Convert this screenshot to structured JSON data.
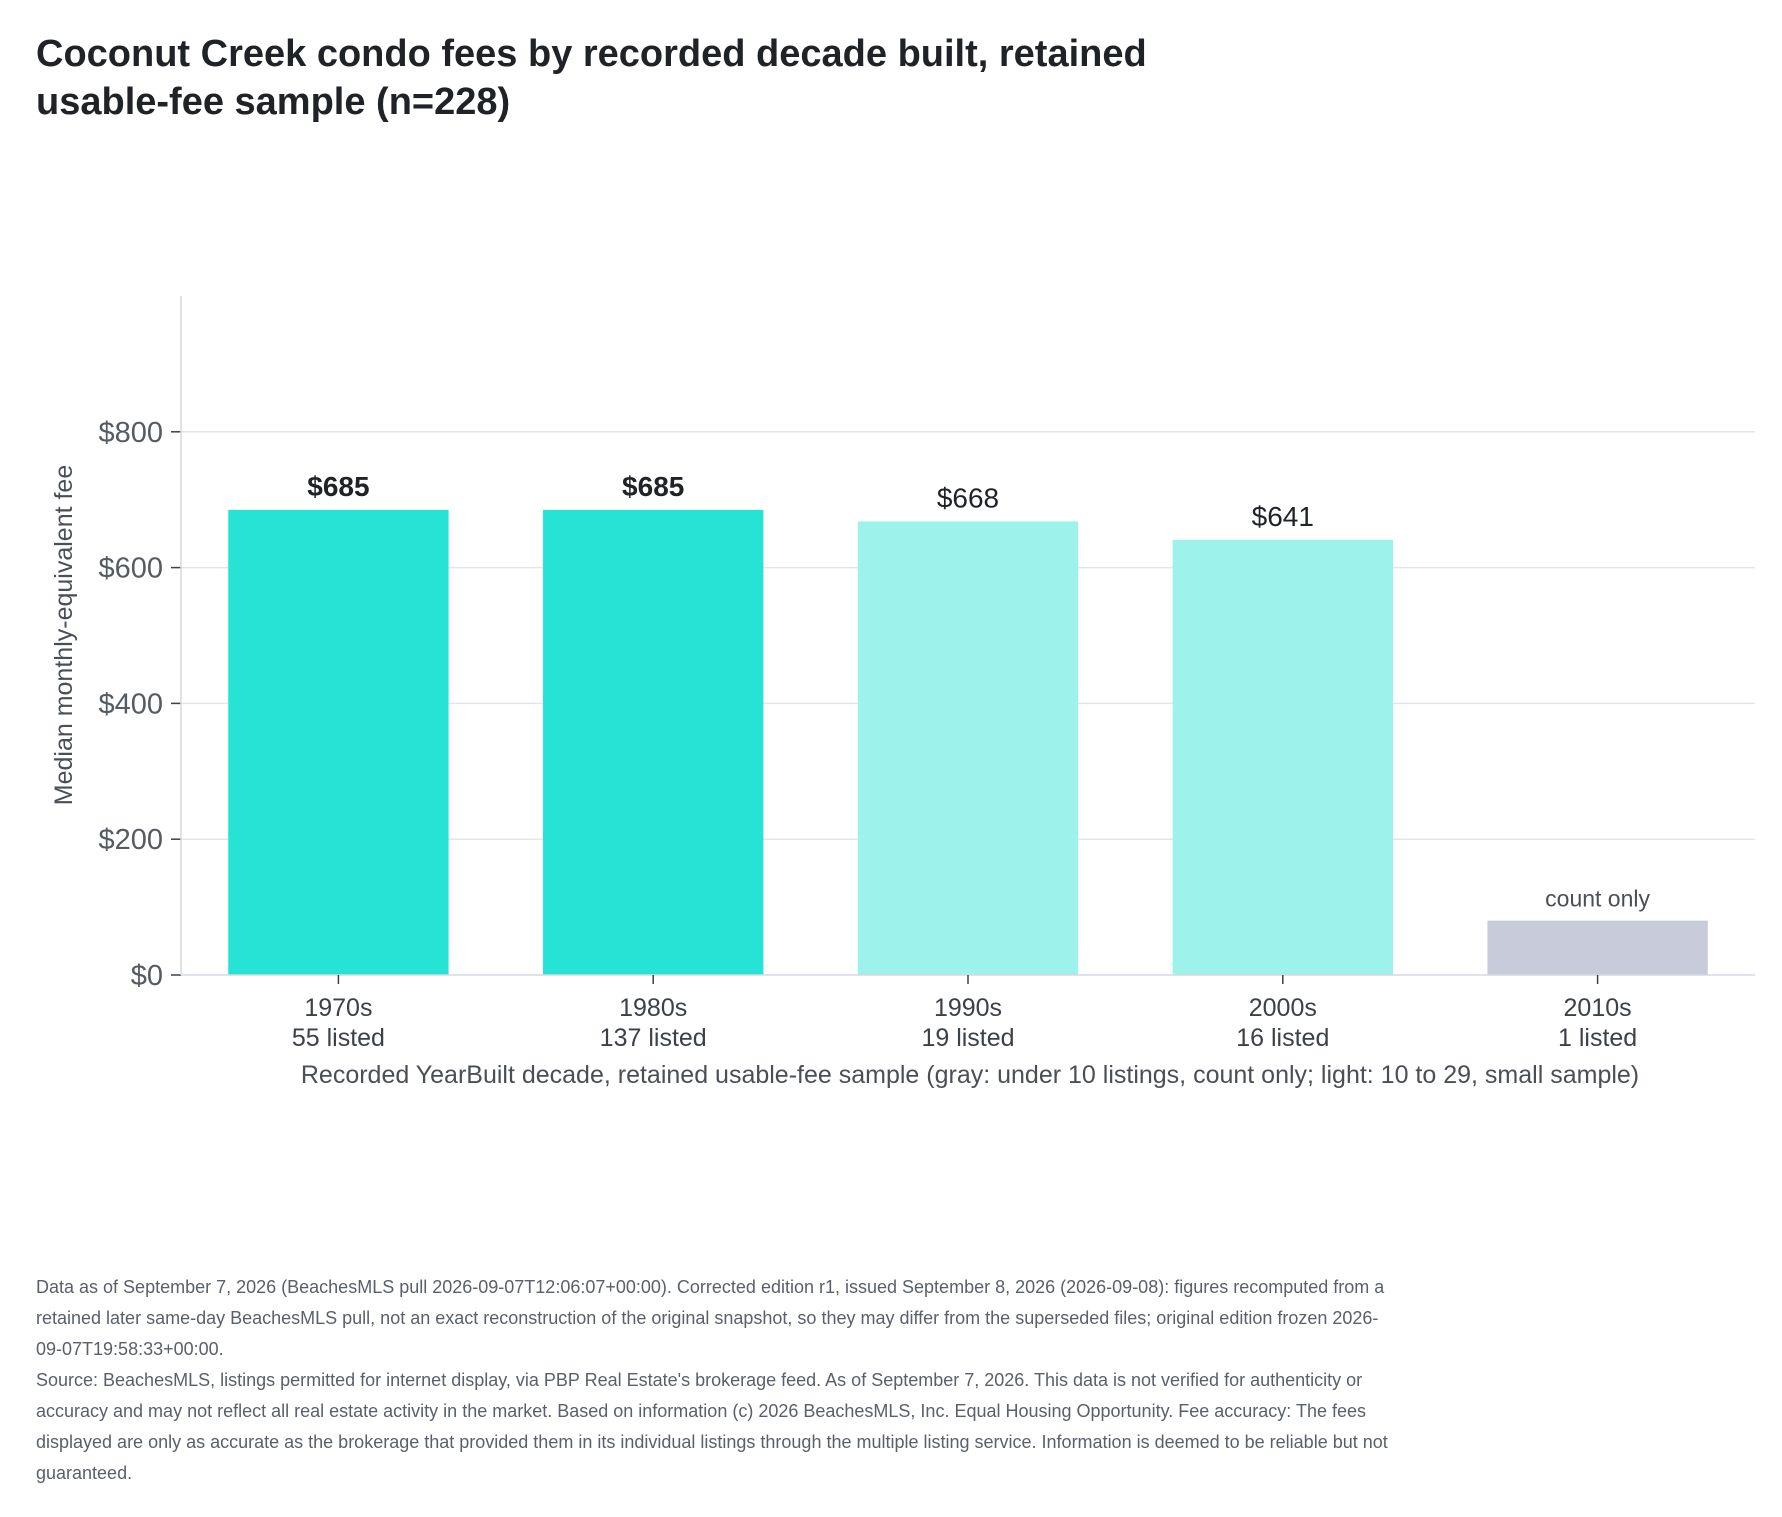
{
  "chart_data": {
    "type": "bar",
    "title": "Coconut Creek condo fees by recorded decade built, retained usable-fee sample (n=228)",
    "xlabel": "Recorded YearBuilt decade, retained usable-fee sample (gray: under 10 listings, count only; light: 10 to 29, small sample)",
    "ylabel": "Median monthly-equivalent fee",
    "ylim": [
      0,
      1000
    ],
    "yticks": [
      0,
      200,
      400,
      600,
      800
    ],
    "ytick_labels": [
      "$0",
      "$200",
      "$400",
      "$600",
      "$800"
    ],
    "grid": true,
    "categories": [
      "1970s",
      "1980s",
      "1990s",
      "2000s",
      "2010s"
    ],
    "counts": [
      "55 listed",
      "137 listed",
      "19 listed",
      "16 listed",
      "1 listed"
    ],
    "values": [
      685,
      685,
      668,
      641,
      null
    ],
    "placeholder_value": 80,
    "data_labels": [
      "$685",
      "$685",
      "$668",
      "$641",
      "count only"
    ],
    "tiers": [
      "full",
      "full",
      "small",
      "small",
      "count-only"
    ],
    "colors": {
      "full": "#27e3d6",
      "small": "#9df2ec",
      "count-only": "#c8ccda",
      "grid": "#e3e5ee",
      "axis": "#d5d8e2"
    }
  },
  "footer": {
    "line1": "Data as of September 7, 2026 (BeachesMLS pull 2026-09-07T12:06:07+00:00). Corrected edition r1, issued September 8, 2026 (2026-09-08): figures recomputed from a retained later same-day BeachesMLS pull, not an exact reconstruction of the original snapshot, so they may differ from the superseded files; original edition frozen 2026-09-07T19:58:33+00:00.",
    "line2": "Source: BeachesMLS, listings permitted for internet display, via PBP Real Estate's brokerage feed. As of September 7, 2026. This data is not verified for authenticity or accuracy and may not reflect all real estate activity in the market. Based on information (c) 2026 BeachesMLS, Inc. Equal Housing Opportunity. Fee accuracy: The fees displayed are only as accurate as the brokerage that provided them in its individual listings through the multiple listing service. Information is deemed to be reliable but not guaranteed."
  }
}
